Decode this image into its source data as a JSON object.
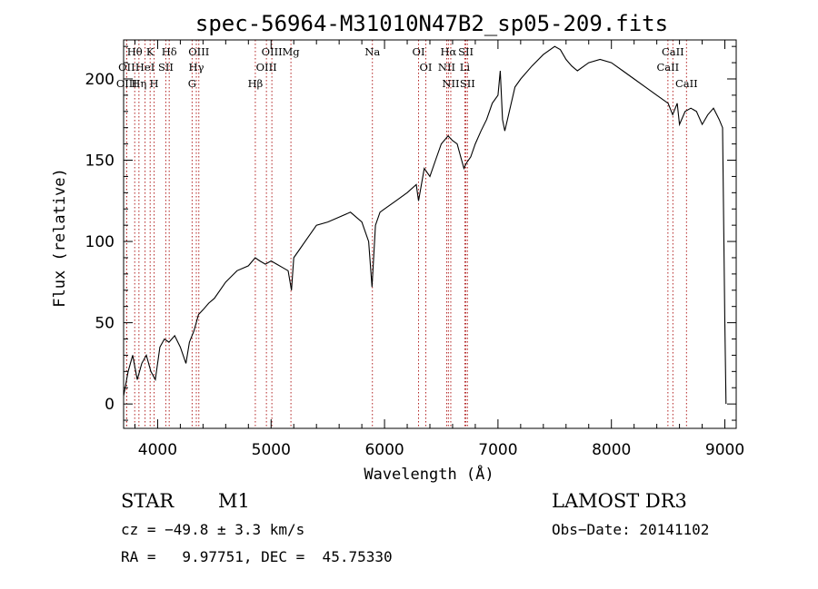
{
  "chart_data": {
    "type": "line",
    "title": "spec-56964-M31010N47B2_sp05-209.fits",
    "xlabel": "Wavelength (Å)",
    "ylabel": "Flux (relative)",
    "xlim": [
      3700,
      9100
    ],
    "ylim": [
      -15,
      224
    ],
    "xticks": [
      4000,
      5000,
      6000,
      7000,
      8000,
      9000
    ],
    "yticks": [
      0,
      50,
      100,
      150,
      200
    ],
    "series": [
      {
        "name": "flux",
        "x": [
          3700,
          3740,
          3780,
          3820,
          3860,
          3900,
          3940,
          3980,
          4020,
          4060,
          4100,
          4150,
          4200,
          4250,
          4280,
          4320,
          4360,
          4400,
          4450,
          4500,
          4600,
          4700,
          4800,
          4860,
          4900,
          4950,
          5000,
          5050,
          5100,
          5150,
          5180,
          5200,
          5250,
          5300,
          5400,
          5500,
          5600,
          5700,
          5800,
          5860,
          5890,
          5920,
          5960,
          6000,
          6100,
          6200,
          6280,
          6300,
          6350,
          6400,
          6450,
          6500,
          6560,
          6600,
          6640,
          6680,
          6700,
          6720,
          6760,
          6800,
          6850,
          6900,
          6950,
          7000,
          7020,
          7040,
          7060,
          7100,
          7150,
          7200,
          7300,
          7400,
          7500,
          7550,
          7600,
          7650,
          7700,
          7800,
          7900,
          8000,
          8100,
          8200,
          8300,
          8400,
          8500,
          8540,
          8580,
          8600,
          8650,
          8700,
          8750,
          8800,
          8850,
          8900,
          8950,
          8980,
          9000,
          9010
        ],
        "y": [
          5,
          20,
          30,
          15,
          25,
          30,
          20,
          15,
          35,
          40,
          38,
          42,
          35,
          25,
          38,
          45,
          55,
          58,
          62,
          65,
          75,
          82,
          85,
          90,
          88,
          86,
          88,
          86,
          84,
          82,
          70,
          90,
          95,
          100,
          110,
          112,
          115,
          118,
          112,
          100,
          72,
          110,
          118,
          120,
          125,
          130,
          135,
          125,
          145,
          140,
          150,
          160,
          165,
          162,
          160,
          150,
          145,
          148,
          152,
          160,
          168,
          175,
          185,
          190,
          205,
          175,
          168,
          180,
          195,
          200,
          208,
          215,
          220,
          218,
          212,
          208,
          205,
          210,
          212,
          210,
          205,
          200,
          195,
          190,
          185,
          178,
          185,
          172,
          180,
          182,
          180,
          172,
          178,
          182,
          175,
          170,
          50,
          0
        ]
      }
    ],
    "spectral_lines": [
      {
        "name": "Hθ",
        "wavelength": 3798
      },
      {
        "name": "OII",
        "wavelength": 3727
      },
      {
        "name": "OIII",
        "wavelength": 3727
      },
      {
        "name": "Hη",
        "wavelength": 3835
      },
      {
        "name": "K",
        "wavelength": 3934
      },
      {
        "name": "HeI",
        "wavelength": 3889
      },
      {
        "name": "H",
        "wavelength": 3969
      },
      {
        "name": "Hδ",
        "wavelength": 4102
      },
      {
        "name": "SII",
        "wavelength": 4072
      },
      {
        "name": "OIII",
        "wavelength": 4363
      },
      {
        "name": "Hγ",
        "wavelength": 4341
      },
      {
        "name": "G",
        "wavelength": 4304
      },
      {
        "name": "OIII",
        "wavelength": 5007
      },
      {
        "name": "OIII",
        "wavelength": 4959
      },
      {
        "name": "Hβ",
        "wavelength": 4861
      },
      {
        "name": "Mg",
        "wavelength": 5175
      },
      {
        "name": "Na",
        "wavelength": 5893
      },
      {
        "name": "OI",
        "wavelength": 6300
      },
      {
        "name": "OI",
        "wavelength": 6364
      },
      {
        "name": "Hα",
        "wavelength": 6563
      },
      {
        "name": "SII",
        "wavelength": 6717
      },
      {
        "name": "NII",
        "wavelength": 6548
      },
      {
        "name": "Li",
        "wavelength": 6708
      },
      {
        "name": "NII",
        "wavelength": 6584
      },
      {
        "name": "SII",
        "wavelength": 6731
      },
      {
        "name": "CaII",
        "wavelength": 8542
      },
      {
        "name": "CaII",
        "wavelength": 8498
      },
      {
        "name": "CaII",
        "wavelength": 8662
      }
    ]
  },
  "info": {
    "object_class": "STAR",
    "subclass": "M1",
    "survey": "LAMOST DR3",
    "cz": "cz = −49.8 ± 3.3 km/s",
    "obs_date": "Obs−Date: 20141102",
    "coords": "RA =   9.97751, DEC =  45.75330"
  }
}
